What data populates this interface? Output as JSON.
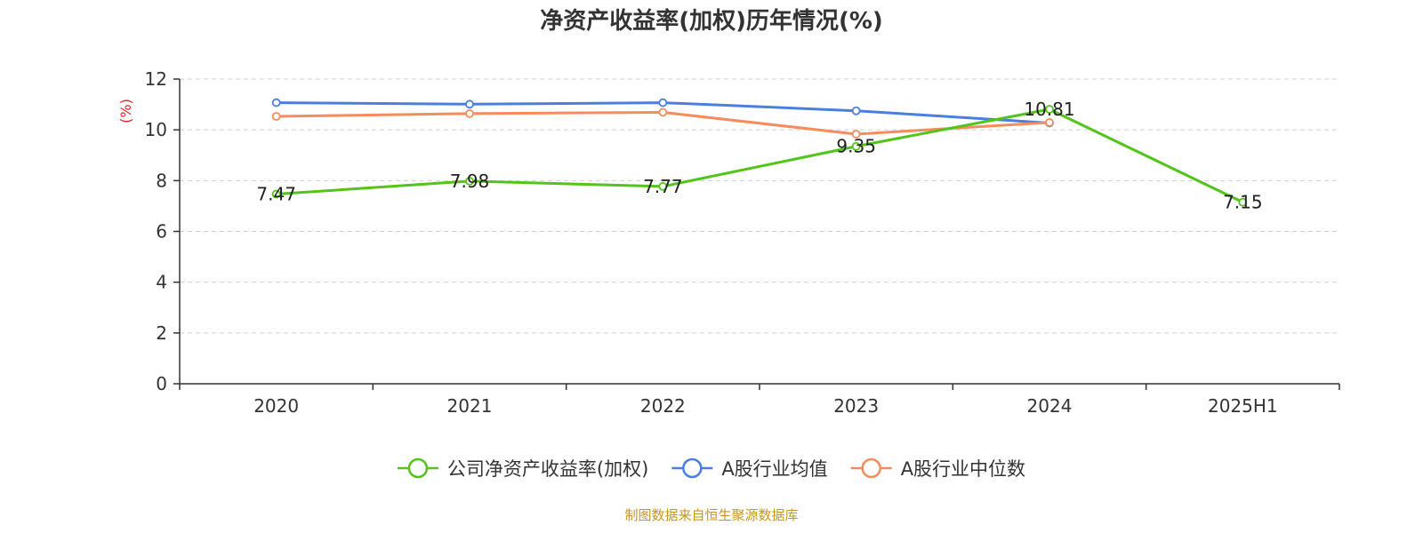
{
  "chart_data": {
    "type": "line",
    "title": "净资产收益率(加权)历年情况(%)",
    "ylabel": "(%)",
    "xlabel": "",
    "categories": [
      "2020",
      "2021",
      "2022",
      "2023",
      "2024",
      "2025H1"
    ],
    "ylim": [
      0,
      12
    ],
    "yticks": [
      0,
      2,
      4,
      6,
      8,
      10,
      12
    ],
    "grid": true,
    "legend_position": "bottom-center",
    "series": [
      {
        "name": "公司净资产收益率(加权)",
        "color": "#52c41a",
        "values": [
          7.47,
          7.98,
          7.77,
          9.35,
          10.81,
          7.15
        ],
        "labels": [
          "7.47",
          "7.98",
          "7.77",
          "9.35",
          "10.81",
          "7.15"
        ]
      },
      {
        "name": "A股行业均值",
        "color": "#4a7fe0",
        "values": [
          11.07,
          11.01,
          11.07,
          10.75,
          10.27,
          null
        ]
      },
      {
        "name": "A股行业中位数",
        "color": "#f58c5b",
        "values": [
          10.53,
          10.64,
          10.69,
          9.83,
          10.29,
          null
        ]
      }
    ]
  },
  "ylabel_color": "#e02020",
  "source": {
    "text": "制图数据来自恒生聚源数据库",
    "color": "#c8961e"
  }
}
